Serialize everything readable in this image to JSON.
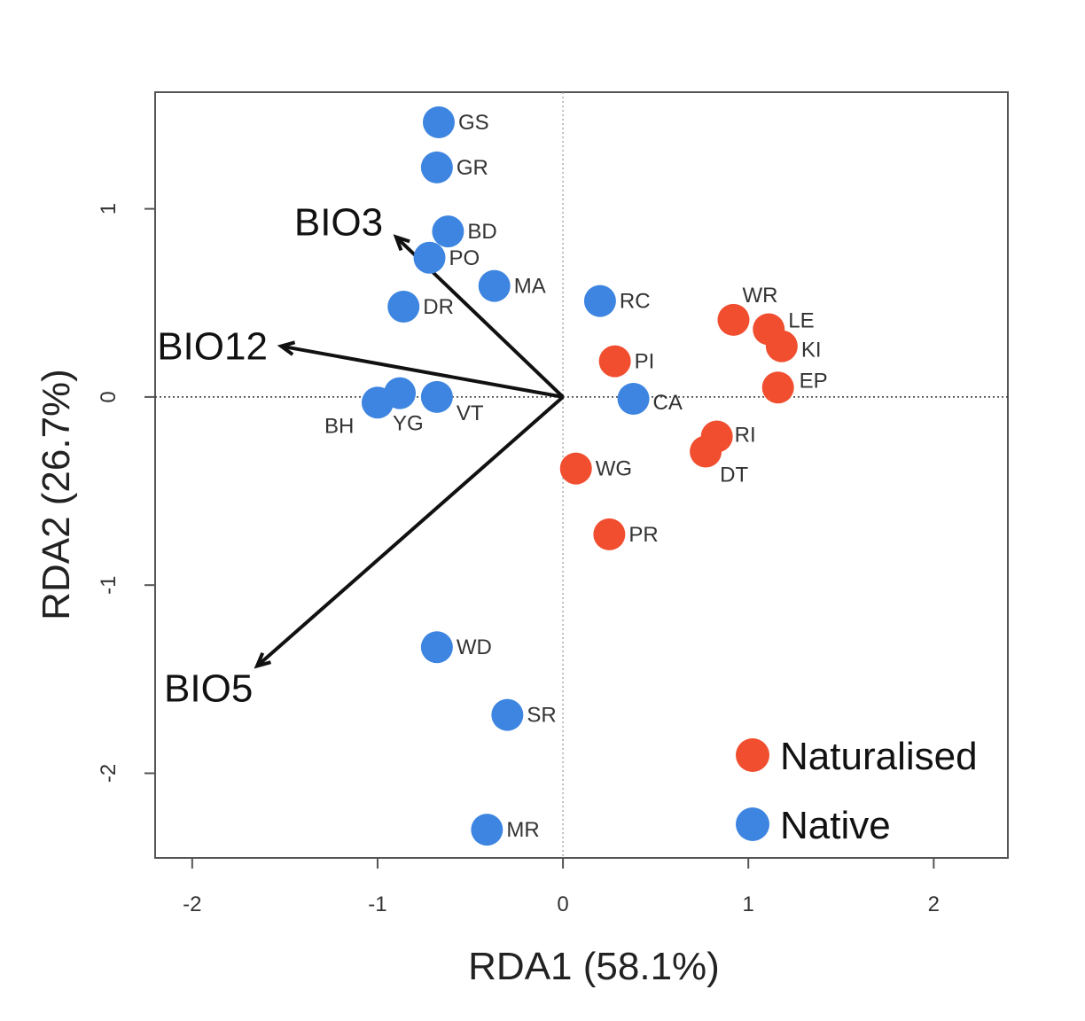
{
  "chart_data": {
    "type": "scatter",
    "title": "",
    "xlabel": "RDA1 (58.1%)",
    "ylabel": "RDA2 (26.7%)",
    "xlim": [
      -2.2,
      2.4
    ],
    "ylim": [
      -2.45,
      1.62
    ],
    "xticks": [
      -2,
      -1,
      0,
      1,
      2
    ],
    "yticks": [
      -2,
      -1,
      0,
      1
    ],
    "reference_lines": {
      "x": 0,
      "y": 0,
      "style": "dotted"
    },
    "colors": {
      "Naturalised": "#f04e2f",
      "Native": "#3d85e0"
    },
    "legend": {
      "placement": "bottom-right",
      "entries": [
        {
          "label": "Naturalised",
          "group": "Naturalised"
        },
        {
          "label": "Native",
          "group": "Native"
        }
      ]
    },
    "vectors": [
      {
        "name": "BIO3",
        "x": -0.9,
        "y": 0.85
      },
      {
        "name": "BIO12",
        "x": -1.52,
        "y": 0.27
      },
      {
        "name": "BIO5",
        "x": -1.65,
        "y": -1.43
      }
    ],
    "points": [
      {
        "label": "GS",
        "group": "Native",
        "x": -0.67,
        "y": 1.46
      },
      {
        "label": "GR",
        "group": "Native",
        "x": -0.68,
        "y": 1.22
      },
      {
        "label": "BD",
        "group": "Native",
        "x": -0.62,
        "y": 0.88
      },
      {
        "label": "PO",
        "group": "Native",
        "x": -0.72,
        "y": 0.74
      },
      {
        "label": "MA",
        "group": "Native",
        "x": -0.37,
        "y": 0.59
      },
      {
        "label": "DR",
        "group": "Native",
        "x": -0.86,
        "y": 0.48
      },
      {
        "label": "RC",
        "group": "Native",
        "x": 0.2,
        "y": 0.51
      },
      {
        "label": "CA",
        "group": "Native",
        "x": 0.38,
        "y": -0.01
      },
      {
        "label": "BH",
        "group": "Native",
        "x": -1.0,
        "y": -0.03
      },
      {
        "label": "YG",
        "group": "Native",
        "x": -0.88,
        "y": 0.02
      },
      {
        "label": "VT",
        "group": "Native",
        "x": -0.68,
        "y": 0.0
      },
      {
        "label": "WD",
        "group": "Native",
        "x": -0.68,
        "y": -1.33
      },
      {
        "label": "SR",
        "group": "Native",
        "x": -0.3,
        "y": -1.69
      },
      {
        "label": "MR",
        "group": "Native",
        "x": -0.41,
        "y": -2.3
      },
      {
        "label": "WR",
        "group": "Naturalised",
        "x": 0.92,
        "y": 0.41
      },
      {
        "label": "LE",
        "group": "Naturalised",
        "x": 1.11,
        "y": 0.36
      },
      {
        "label": "KI",
        "group": "Naturalised",
        "x": 1.18,
        "y": 0.27
      },
      {
        "label": "EP",
        "group": "Naturalised",
        "x": 1.16,
        "y": 0.05
      },
      {
        "label": "PI",
        "group": "Naturalised",
        "x": 0.28,
        "y": 0.19
      },
      {
        "label": "WG",
        "group": "Naturalised",
        "x": 0.07,
        "y": -0.38
      },
      {
        "label": "RI",
        "group": "Naturalised",
        "x": 0.83,
        "y": -0.21
      },
      {
        "label": "DT",
        "group": "Naturalised",
        "x": 0.77,
        "y": -0.29
      },
      {
        "label": "PR",
        "group": "Naturalised",
        "x": 0.25,
        "y": -0.73
      }
    ]
  }
}
